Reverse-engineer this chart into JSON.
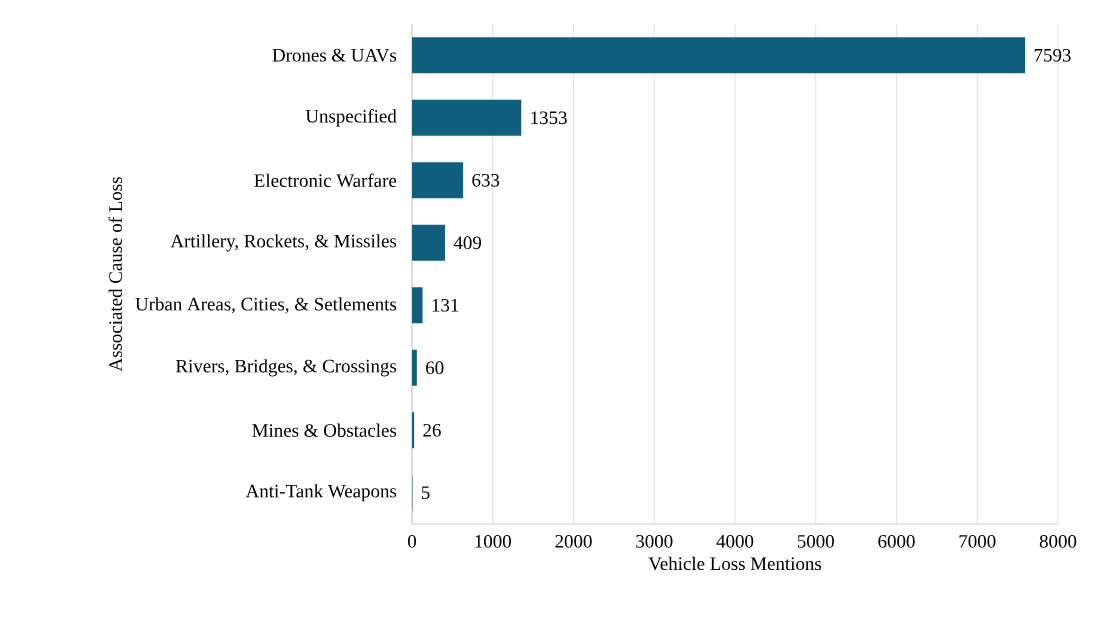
{
  "chart_data": {
    "type": "bar",
    "orientation": "horizontal",
    "xlabel": "Vehicle Loss Mentions",
    "ylabel": "Associated Cause of Loss",
    "categories": [
      "Drones & UAVs",
      "Unspecified",
      "Electronic Warfare",
      "Artillery, Rockets, & Missiles",
      "Urban Areas, Cities, & Setlements",
      "Rivers, Bridges, & Crossings",
      "Mines & Obstacles",
      "Anti-Tank Weapons"
    ],
    "values": [
      7593,
      1353,
      633,
      409,
      131,
      60,
      26,
      5
    ],
    "color": "#0f5f7d",
    "xlim": [
      0,
      8000
    ],
    "xticks": [
      0,
      1000,
      2000,
      3000,
      4000,
      5000,
      6000,
      7000,
      8000
    ],
    "grid": "x",
    "data_labels": true
  }
}
